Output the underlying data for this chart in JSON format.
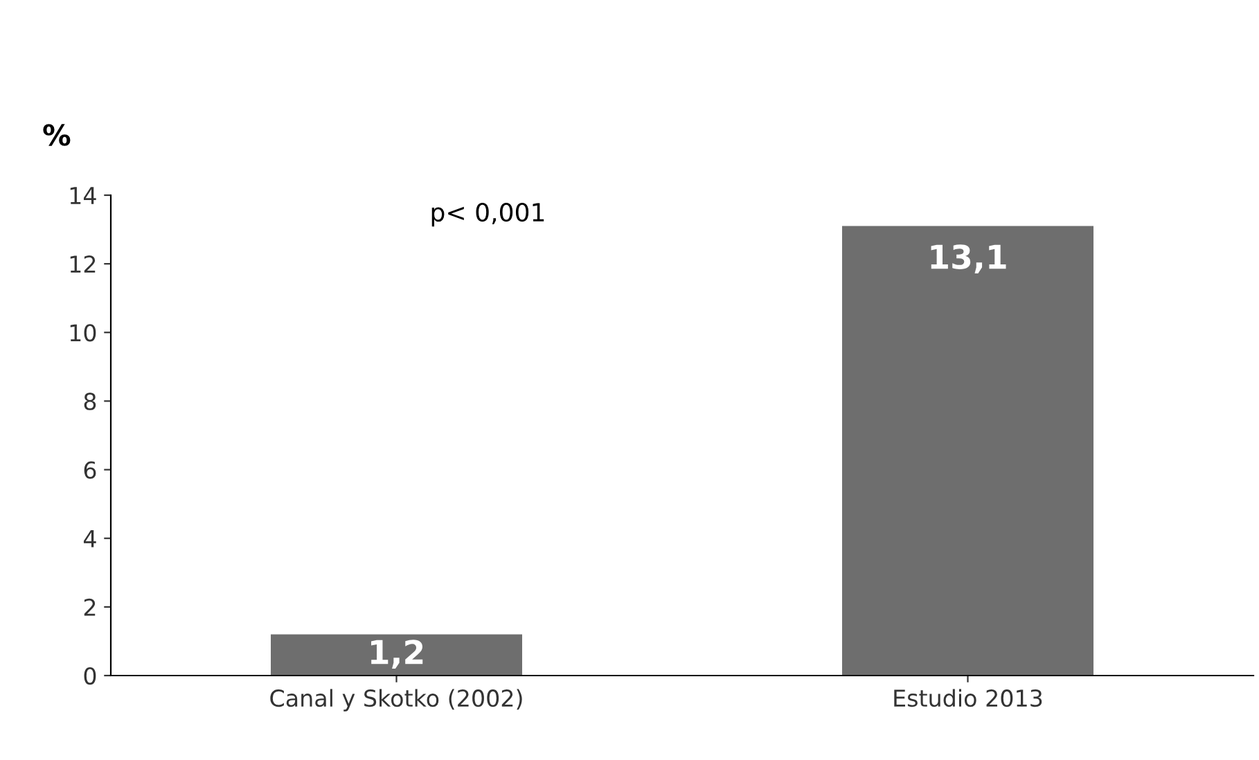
{
  "chart_data": {
    "type": "bar",
    "ylabel": "%",
    "categories": [
      "Canal y Skotko (2002)",
      "Estudio 2013"
    ],
    "values": [
      1.2,
      13.1
    ],
    "color": "#6e6e6e",
    "value_labels": [
      "1,2",
      "13,1"
    ],
    "ylim": [
      0,
      14
    ],
    "yticks": [
      0,
      2,
      4,
      6,
      8,
      10,
      12,
      14
    ],
    "grid": false,
    "legend": false,
    "annotations": [
      "p< 0,001"
    ]
  }
}
